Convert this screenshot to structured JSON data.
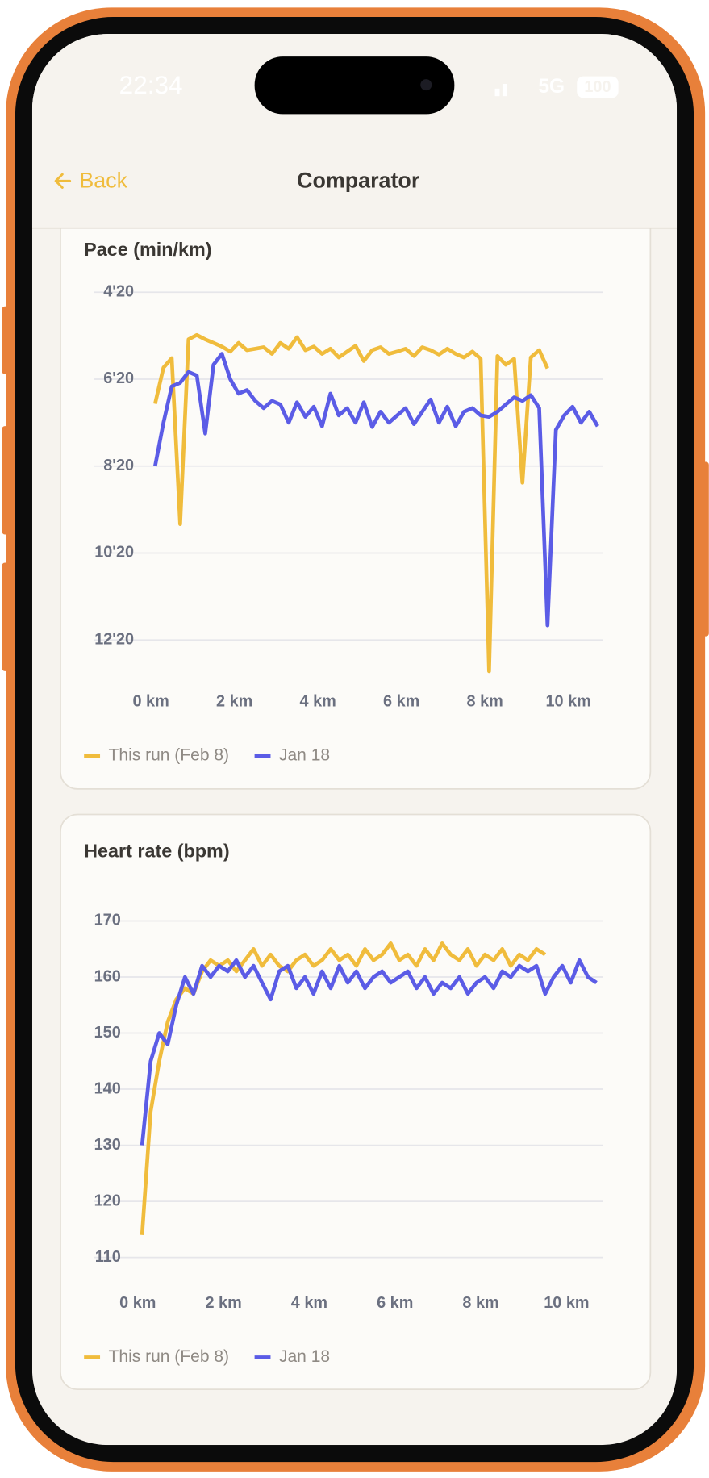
{
  "status_bar": {
    "time": "22:34",
    "network": "5G",
    "battery": "100"
  },
  "nav": {
    "back": "Back",
    "title": "Comparator"
  },
  "chart_data": [
    {
      "type": "line",
      "title": "Pace (min/km)",
      "y_reverse": true,
      "grid": true,
      "legend": "bottom-left",
      "x": [
        0.1,
        0.3,
        0.5,
        0.7,
        0.9,
        1.1,
        1.3,
        1.5,
        1.7,
        1.9,
        2.1,
        2.3,
        2.5,
        2.7,
        2.9,
        3.1,
        3.3,
        3.5,
        3.7,
        3.9,
        4.1,
        4.3,
        4.5,
        4.7,
        4.9,
        5.1,
        5.3,
        5.5,
        5.7,
        5.9,
        6.1,
        6.3,
        6.5,
        6.7,
        6.9,
        7.1,
        7.3,
        7.5,
        7.7,
        7.9,
        8.1,
        8.3,
        8.5,
        8.7,
        8.9,
        9.1,
        9.3,
        9.5,
        9.7,
        9.9,
        10.1,
        10.3,
        10.5,
        10.7
      ],
      "series": [
        {
          "name": "This run (Feb 8)",
          "color": "#f0bc3c",
          "values": [
            414,
            364,
            351,
            580,
            325,
            319,
            325,
            330,
            335,
            342,
            330,
            340,
            338,
            336,
            345,
            330,
            338,
            322,
            340,
            335,
            345,
            338,
            350,
            342,
            334,
            355,
            340,
            336,
            345,
            342,
            338,
            348,
            336,
            340,
            346,
            338,
            345,
            350,
            342,
            352,
            783,
            348,
            360,
            352,
            523,
            350,
            340,
            365,
            null,
            null,
            null,
            null,
            null,
            null
          ]
        },
        {
          "name": "Jan 18",
          "color": "#5b5ce6",
          "values": [
            500,
            440,
            390,
            385,
            370,
            375,
            455,
            360,
            345,
            380,
            400,
            395,
            410,
            420,
            410,
            415,
            440,
            412,
            432,
            418,
            445,
            400,
            430,
            420,
            440,
            412,
            446,
            425,
            440,
            430,
            420,
            442,
            425,
            408,
            440,
            418,
            445,
            425,
            420,
            430,
            432,
            425,
            415,
            405,
            410,
            402,
            420,
            720,
            450,
            430,
            418,
            440,
            425,
            445
          ]
        }
      ],
      "xlim": [
        0,
        10.8
      ],
      "xticks": [
        {
          "value": 0,
          "label": "0 km"
        },
        {
          "value": 2,
          "label": "2 km"
        },
        {
          "value": 4,
          "label": "4 km"
        },
        {
          "value": 6,
          "label": "6 km"
        },
        {
          "value": 8,
          "label": "8 km"
        },
        {
          "value": 10,
          "label": "10 km"
        }
      ],
      "ylim": [
        245,
        785
      ],
      "yticks": [
        {
          "value": 260,
          "label": "4'20"
        },
        {
          "value": 380,
          "label": "6'20"
        },
        {
          "value": 500,
          "label": "8'20"
        },
        {
          "value": 620,
          "label": "10'20"
        },
        {
          "value": 740,
          "label": "12'20"
        }
      ]
    },
    {
      "type": "line",
      "title": "Heart rate (bpm)",
      "y_reverse": false,
      "grid": true,
      "legend": "bottom-left",
      "x": [
        0.1,
        0.3,
        0.5,
        0.7,
        0.9,
        1.1,
        1.3,
        1.5,
        1.7,
        1.9,
        2.1,
        2.3,
        2.5,
        2.7,
        2.9,
        3.1,
        3.3,
        3.5,
        3.7,
        3.9,
        4.1,
        4.3,
        4.5,
        4.7,
        4.9,
        5.1,
        5.3,
        5.5,
        5.7,
        5.9,
        6.1,
        6.3,
        6.5,
        6.7,
        6.9,
        7.1,
        7.3,
        7.5,
        7.7,
        7.9,
        8.1,
        8.3,
        8.5,
        8.7,
        8.9,
        9.1,
        9.3,
        9.5,
        9.7,
        9.9,
        10.1,
        10.3,
        10.5,
        10.7
      ],
      "series": [
        {
          "name": "This run (Feb 8)",
          "color": "#f0bc3c",
          "values": [
            114,
            136,
            145,
            152,
            156,
            158,
            157,
            161,
            163,
            162,
            163,
            161,
            163,
            165,
            162,
            164,
            162,
            161,
            163,
            164,
            162,
            163,
            165,
            163,
            164,
            162,
            165,
            163,
            164,
            166,
            163,
            164,
            162,
            165,
            163,
            166,
            164,
            163,
            165,
            162,
            164,
            163,
            165,
            162,
            164,
            163,
            165,
            164,
            null,
            null,
            null,
            null,
            null,
            null
          ]
        },
        {
          "name": "Jan 18",
          "color": "#5b5ce6",
          "values": [
            130,
            145,
            150,
            148,
            155,
            160,
            157,
            162,
            160,
            162,
            161,
            163,
            160,
            162,
            159,
            156,
            161,
            162,
            158,
            160,
            157,
            161,
            158,
            162,
            159,
            161,
            158,
            160,
            161,
            159,
            160,
            161,
            158,
            160,
            157,
            159,
            158,
            160,
            157,
            159,
            160,
            158,
            161,
            160,
            162,
            161,
            162,
            157,
            160,
            162,
            159,
            163,
            160,
            159
          ]
        }
      ],
      "xlim": [
        0,
        10.8
      ],
      "xticks": [
        {
          "value": 0,
          "label": "0 km"
        },
        {
          "value": 2,
          "label": "2 km"
        },
        {
          "value": 4,
          "label": "4 km"
        },
        {
          "value": 6,
          "label": "6 km"
        },
        {
          "value": 8,
          "label": "8 km"
        },
        {
          "value": 10,
          "label": "10 km"
        }
      ],
      "ylim": [
        110,
        170
      ],
      "yticks": [
        110,
        120,
        130,
        140,
        150,
        160,
        170
      ]
    }
  ]
}
